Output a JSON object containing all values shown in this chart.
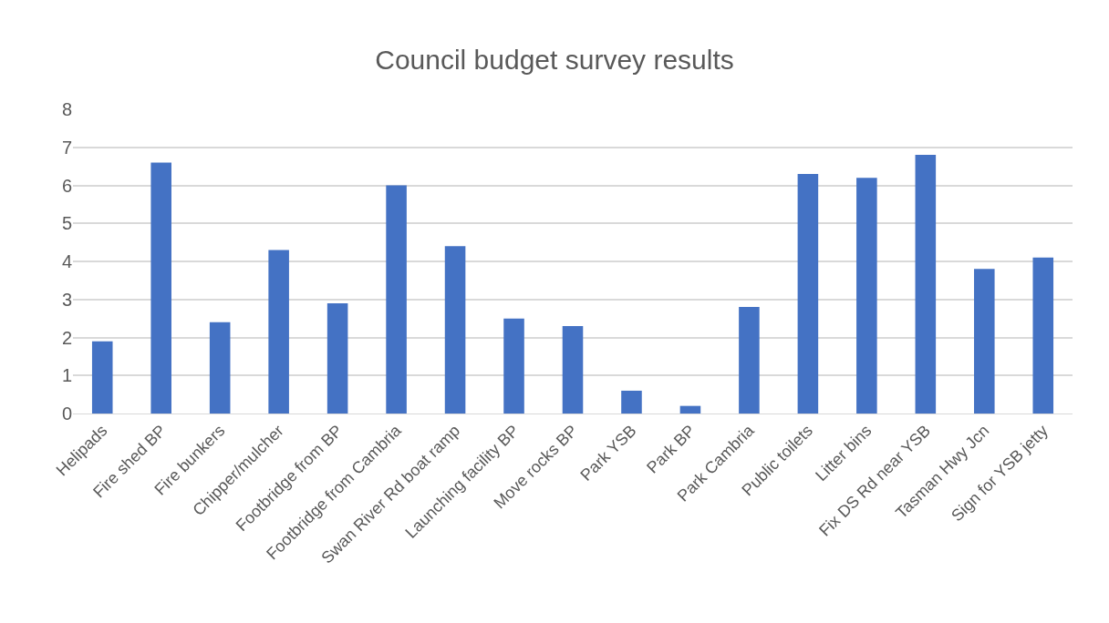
{
  "chart_data": {
    "type": "bar",
    "title": "Council budget survey results",
    "categories": [
      "Helipads",
      "Fire shed BP",
      "Fire bunkers",
      "Chipper/mulcher",
      "Footbridge from BP",
      "Footbridge from Cambria",
      "Swan River Rd boat ramp",
      "Launching facility BP",
      "Move rocks BP",
      "Park YSB",
      "Park BP",
      "Park Cambria",
      "Public toilets",
      "Litter bins",
      "Fix DS Rd near YSB",
      "Tasman Hwy Jcn",
      "Sign for YSB jetty"
    ],
    "values": [
      1.9,
      6.6,
      2.4,
      4.3,
      2.9,
      6.0,
      4.4,
      2.5,
      2.3,
      0.6,
      0.2,
      2.8,
      6.3,
      6.2,
      6.8,
      3.8,
      4.1
    ],
    "color": "#4472c4",
    "ylim": [
      0,
      8
    ],
    "yticks": [
      0,
      1,
      2,
      3,
      4,
      5,
      6,
      7,
      8
    ],
    "grid": "y"
  }
}
